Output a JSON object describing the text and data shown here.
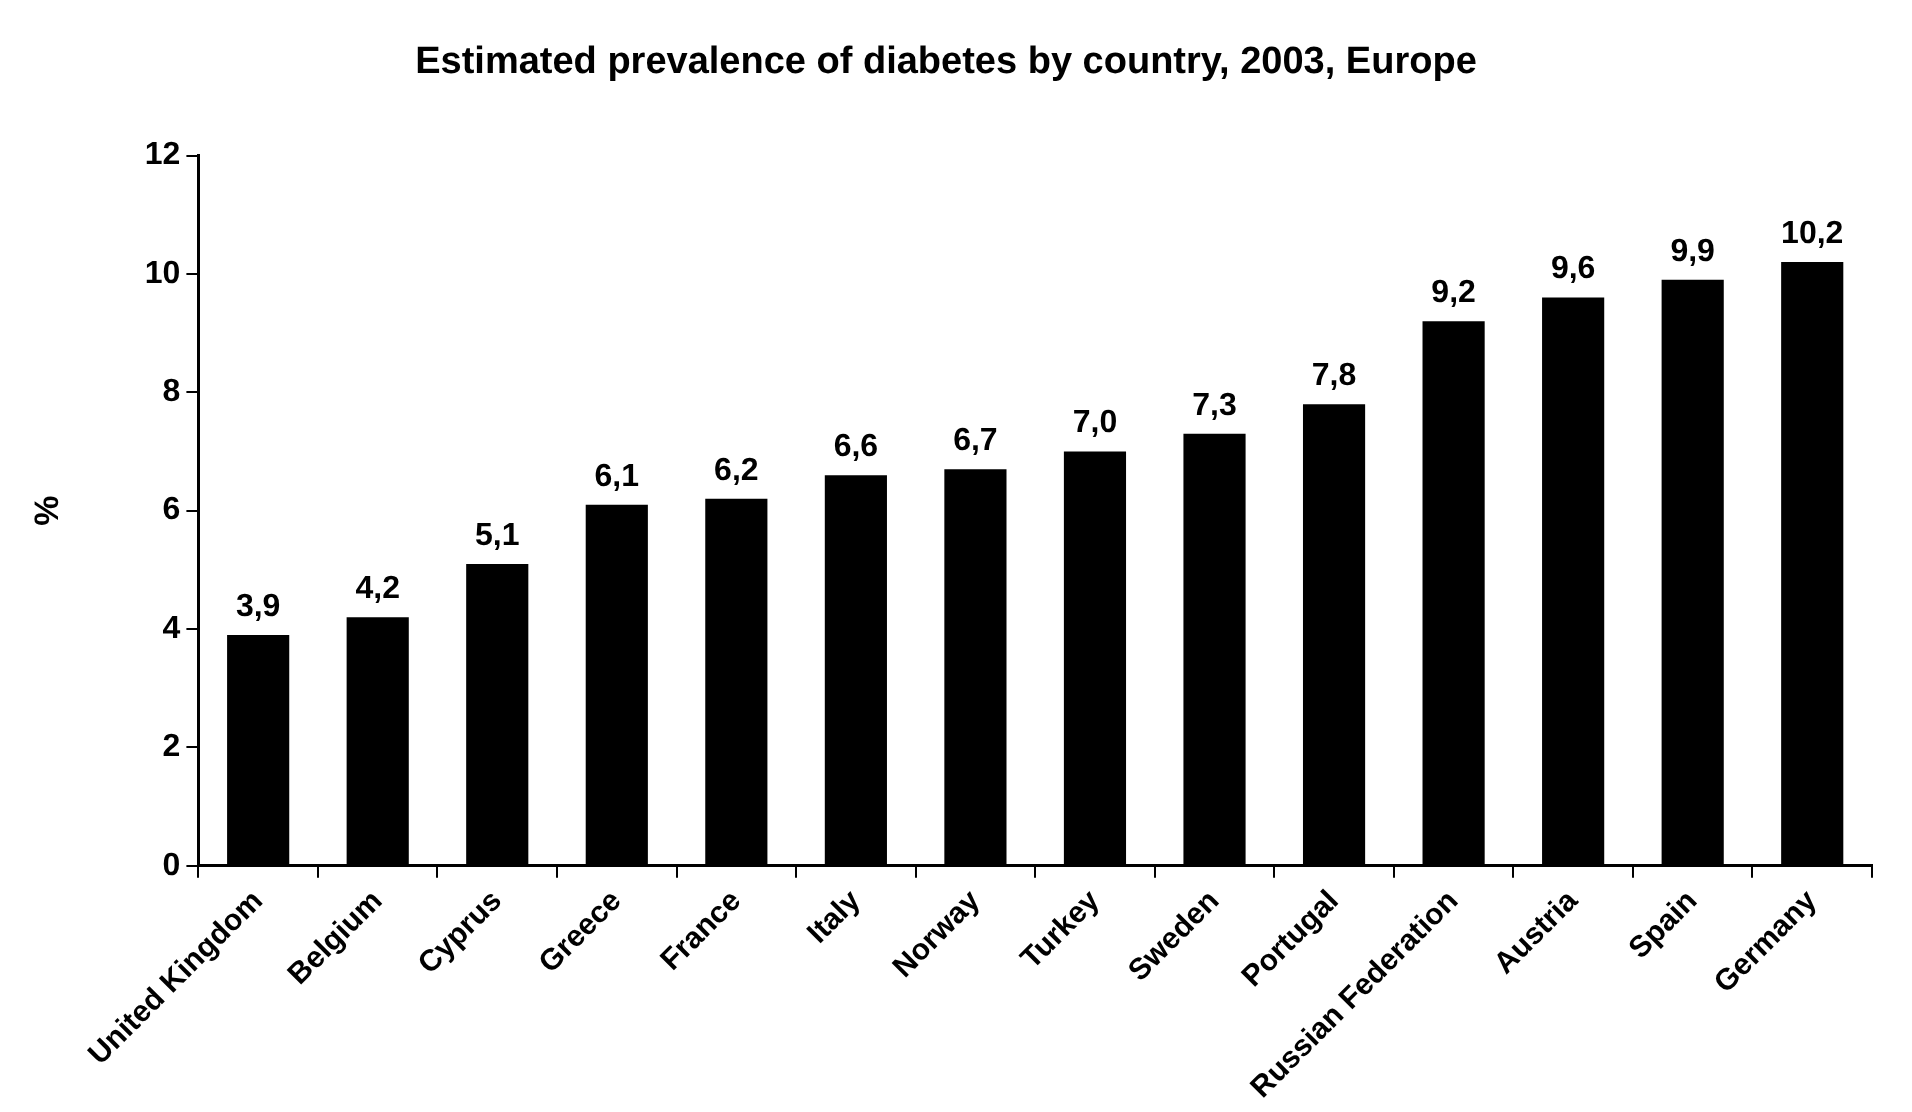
{
  "chart_data": {
    "type": "bar",
    "title": "Estimated prevalence of diabetes by country, 2003, Europe",
    "ylabel": "%",
    "categories": [
      "United Kingdom",
      "Belgium",
      "Cyprus",
      "Greece",
      "France",
      "Italy",
      "Norway",
      "Turkey",
      "Sweden",
      "Portugal",
      "Russian Federation",
      "Austria",
      "Spain",
      "Germany"
    ],
    "values": [
      3.9,
      4.2,
      5.1,
      6.1,
      6.2,
      6.6,
      6.7,
      7.0,
      7.3,
      7.8,
      9.2,
      9.6,
      9.9,
      10.2
    ],
    "value_labels": [
      "3,9",
      "4,2",
      "5,1",
      "6,1",
      "6,2",
      "6,6",
      "6,7",
      "7,0",
      "7,3",
      "7,8",
      "9,2",
      "9,6",
      "9,9",
      "10,2"
    ],
    "color": "#000000",
    "ylim": [
      0,
      12
    ],
    "yticks": [
      0,
      2,
      4,
      6,
      8,
      10,
      12
    ],
    "grid": false,
    "legend": false
  }
}
